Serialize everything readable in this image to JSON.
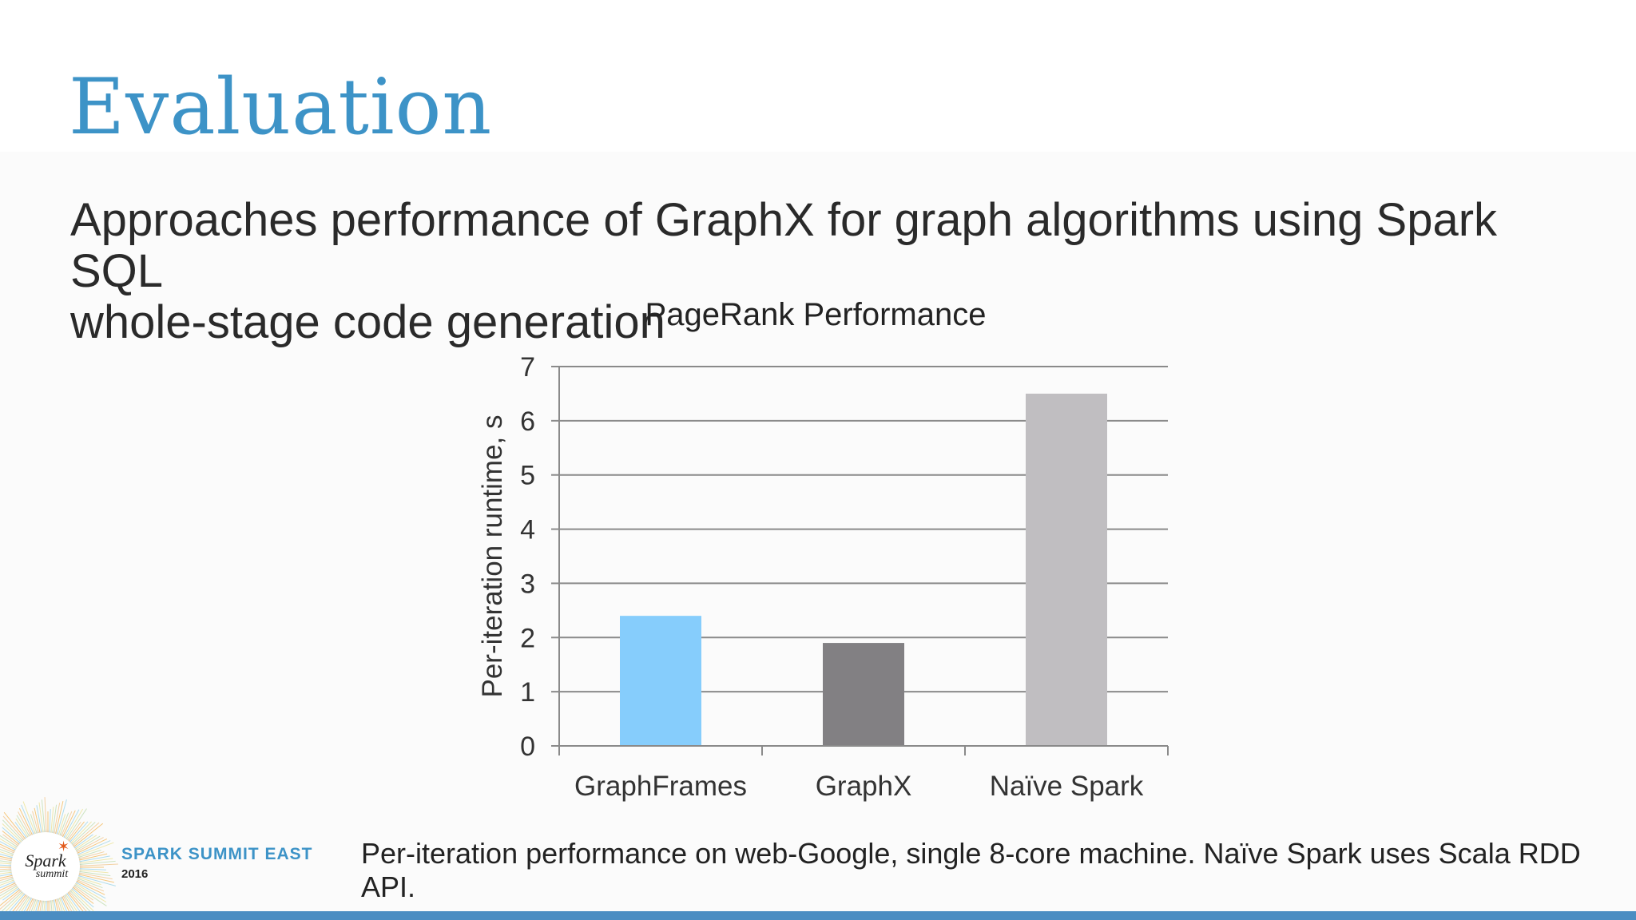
{
  "slide": {
    "title": "Evaluation",
    "subtitle_lines": [
      "Approaches performance of GraphX for graph algorithms using Spark SQL",
      "whole-stage code generation"
    ],
    "footnote": "Per-iteration performance on web-Google, single 8-core machine. Naïve Spark uses Scala RDD API."
  },
  "branding": {
    "event_name": "SPARK SUMMIT EAST",
    "event_year": "2016",
    "logo_text": [
      "Spark",
      "summit"
    ],
    "logo_icon": "star-icon",
    "title_color": "#3d93c7",
    "bar_color": "#4b8dc2"
  },
  "chart_data": {
    "type": "bar",
    "title": "PageRank Performance",
    "xlabel": "",
    "ylabel": "Per-iteration runtime, s",
    "categories": [
      "GraphFrames",
      "GraphX",
      "Naïve Spark"
    ],
    "values": [
      2.4,
      1.9,
      6.5
    ],
    "colors": [
      "#86cdfc",
      "#828083",
      "#c0bec1"
    ],
    "ylim": [
      0,
      7
    ],
    "yticks": [
      "0",
      "1",
      "2",
      "3",
      "4",
      "5",
      "6",
      "7"
    ],
    "grid": true,
    "legend": "none"
  }
}
